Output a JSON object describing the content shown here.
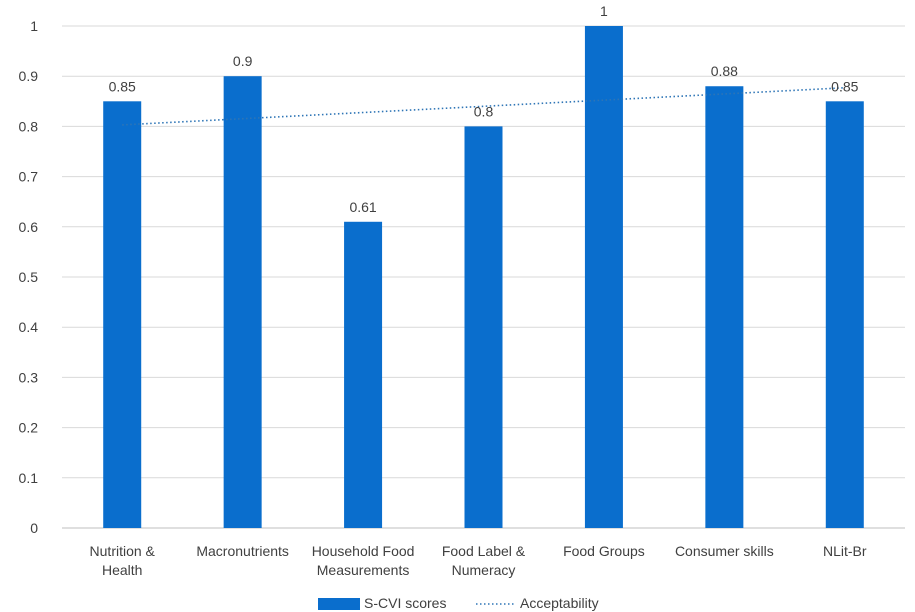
{
  "chart_data": {
    "type": "bar",
    "categories": [
      [
        "Nutrition &",
        "Health"
      ],
      [
        "Macronutrients"
      ],
      [
        "Household Food",
        "Measurements"
      ],
      [
        "Food Label &",
        "Numeracy"
      ],
      [
        "Food Groups"
      ],
      [
        "Consumer skills"
      ],
      [
        "NLit-Br"
      ]
    ],
    "series": [
      {
        "name": "S-CVI scores",
        "type": "bar",
        "color": "#0a6ecd",
        "values": [
          0.85,
          0.9,
          0.61,
          0.8,
          1,
          0.88,
          0.85
        ],
        "labels": [
          "0.85",
          "0.9",
          "0.61",
          "0.8",
          "1",
          "0.88",
          "0.85"
        ]
      },
      {
        "name": "Acceptability",
        "type": "line",
        "style": "dotted",
        "color": "#2e75b6",
        "start": 0.803,
        "end": 0.877
      }
    ],
    "yticks": [
      "0",
      "0.1",
      "0.2",
      "0.3",
      "0.4",
      "0.5",
      "0.6",
      "0.7",
      "0.8",
      "0.9",
      "1"
    ],
    "ylim": [
      0,
      1
    ],
    "grid": true,
    "legend_position": "bottom"
  }
}
